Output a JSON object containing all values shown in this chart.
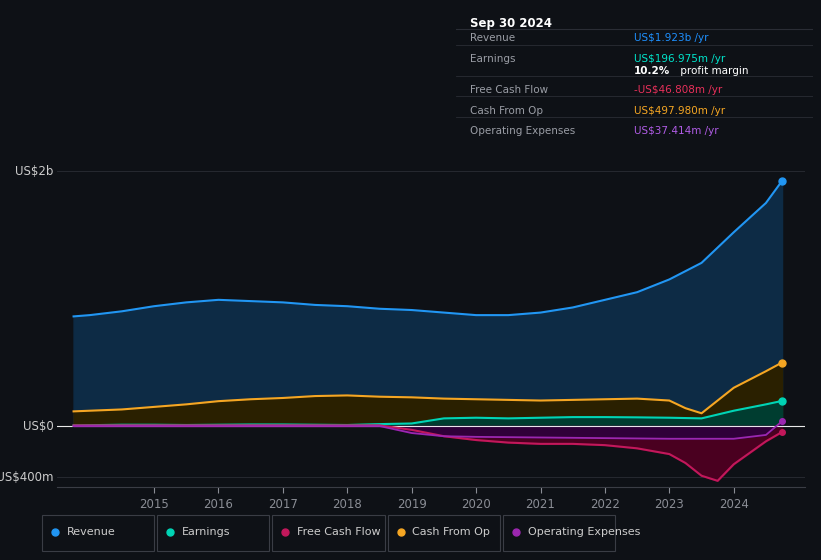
{
  "bg_color": "#0e1116",
  "plot_bg_color": "#0e1116",
  "info_box": {
    "title": "Sep 30 2024",
    "rows": [
      {
        "label": "Revenue",
        "value": "US$1.923b /yr",
        "value_color": "#1e90ff"
      },
      {
        "label": "Earnings",
        "value": "US$196.975m /yr",
        "value_color": "#00e5cc"
      },
      {
        "label": "",
        "value2a": "10.2%",
        "value2b": " profit margin",
        "value_color": "#ffffff"
      },
      {
        "label": "Free Cash Flow",
        "value": "-US$46.808m /yr",
        "value_color": "#e8305a"
      },
      {
        "label": "Cash From Op",
        "value": "US$497.980m /yr",
        "value_color": "#f5a623"
      },
      {
        "label": "Operating Expenses",
        "value": "US$37.414m /yr",
        "value_color": "#b05ce6"
      }
    ]
  },
  "y_label_top": "US$2b",
  "y_label_zero": "US$0",
  "y_label_bottom": "-US$400m",
  "ylim": [
    -480,
    2200
  ],
  "xlim_left": 2013.5,
  "xlim_right": 2025.1,
  "x_ticks": [
    2015,
    2016,
    2017,
    2018,
    2019,
    2020,
    2021,
    2022,
    2023,
    2024
  ],
  "revenue": {
    "color": "#2196f3",
    "fill": "#0d2b45",
    "label": "Revenue",
    "x": [
      2013.75,
      2014.0,
      2014.5,
      2015.0,
      2015.5,
      2016.0,
      2016.5,
      2017.0,
      2017.5,
      2018.0,
      2018.5,
      2019.0,
      2019.5,
      2020.0,
      2020.5,
      2021.0,
      2021.5,
      2022.0,
      2022.5,
      2023.0,
      2023.5,
      2024.0,
      2024.5,
      2024.75
    ],
    "y": [
      860,
      870,
      900,
      940,
      970,
      990,
      980,
      970,
      950,
      940,
      920,
      910,
      890,
      870,
      870,
      890,
      930,
      990,
      1050,
      1150,
      1280,
      1520,
      1750,
      1923
    ]
  },
  "earnings": {
    "color": "#00d4b5",
    "fill": "#003d30",
    "label": "Earnings",
    "x": [
      2013.75,
      2014.5,
      2015.0,
      2015.5,
      2016.0,
      2016.5,
      2017.0,
      2017.5,
      2018.0,
      2018.5,
      2019.0,
      2019.5,
      2020.0,
      2020.5,
      2021.0,
      2021.5,
      2022.0,
      2022.5,
      2023.0,
      2023.5,
      2024.0,
      2024.5,
      2024.75
    ],
    "y": [
      5,
      10,
      10,
      8,
      10,
      12,
      12,
      10,
      8,
      15,
      20,
      60,
      65,
      60,
      65,
      70,
      70,
      68,
      65,
      60,
      120,
      170,
      197
    ]
  },
  "free_cash_flow": {
    "color": "#c2185b",
    "fill": "#4a0020",
    "label": "Free Cash Flow",
    "x": [
      2013.75,
      2014.5,
      2015.0,
      2016.0,
      2017.0,
      2018.0,
      2018.5,
      2019.0,
      2019.5,
      2020.0,
      2020.5,
      2021.0,
      2021.5,
      2022.0,
      2022.5,
      2023.0,
      2023.25,
      2023.5,
      2023.75,
      2024.0,
      2024.5,
      2024.75
    ],
    "y": [
      5,
      5,
      5,
      5,
      5,
      5,
      5,
      -30,
      -80,
      -110,
      -130,
      -140,
      -140,
      -150,
      -175,
      -220,
      -290,
      -390,
      -430,
      -300,
      -120,
      -47
    ]
  },
  "cash_from_op": {
    "color": "#f5a623",
    "fill": "#3d2800",
    "label": "Cash From Op",
    "x": [
      2013.75,
      2014.5,
      2015.0,
      2015.5,
      2016.0,
      2016.5,
      2017.0,
      2017.5,
      2018.0,
      2018.5,
      2019.0,
      2019.5,
      2020.0,
      2020.5,
      2021.0,
      2021.5,
      2022.0,
      2022.5,
      2023.0,
      2023.25,
      2023.5,
      2024.0,
      2024.5,
      2024.75
    ],
    "y": [
      115,
      130,
      150,
      170,
      195,
      210,
      220,
      235,
      240,
      230,
      225,
      215,
      210,
      205,
      200,
      205,
      210,
      215,
      200,
      140,
      100,
      300,
      430,
      498
    ]
  },
  "operating_expenses": {
    "color": "#9c27b0",
    "fill": "#2a0040",
    "label": "Operating Expenses",
    "x": [
      2013.75,
      2014.5,
      2015.0,
      2016.0,
      2017.0,
      2018.0,
      2018.5,
      2019.0,
      2019.5,
      2020.0,
      2021.0,
      2022.0,
      2023.0,
      2024.0,
      2024.5,
      2024.75
    ],
    "y": [
      0,
      0,
      0,
      0,
      0,
      0,
      0,
      -55,
      -80,
      -85,
      -90,
      -95,
      -100,
      -100,
      -70,
      37
    ]
  },
  "legend": [
    {
      "label": "Revenue",
      "color": "#2196f3"
    },
    {
      "label": "Earnings",
      "color": "#00d4b5"
    },
    {
      "label": "Free Cash Flow",
      "color": "#c2185b"
    },
    {
      "label": "Cash From Op",
      "color": "#f5a623"
    },
    {
      "label": "Operating Expenses",
      "color": "#9c27b0"
    }
  ]
}
